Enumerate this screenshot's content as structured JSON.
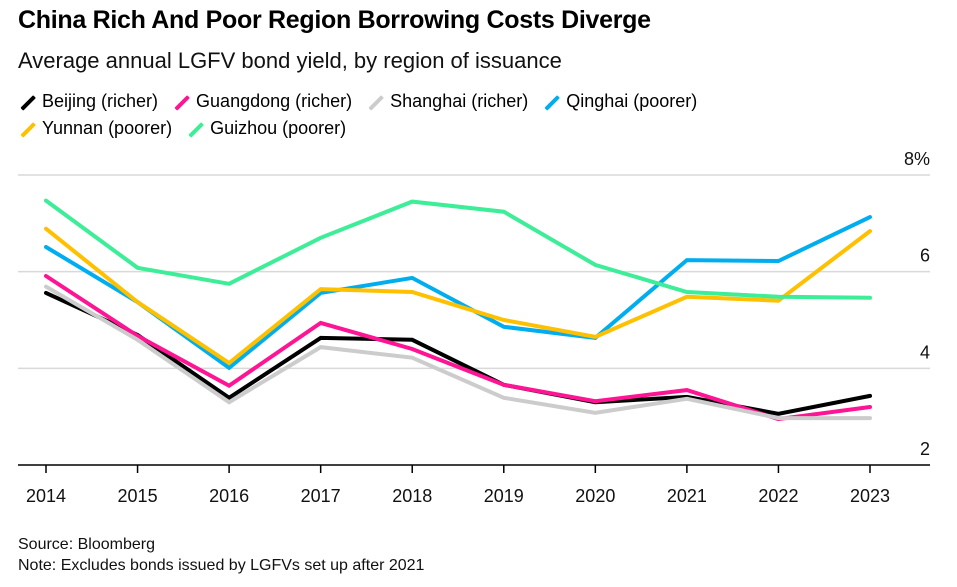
{
  "chart_data": {
    "type": "line",
    "title": "China Rich And Poor Region Borrowing Costs Diverge",
    "subtitle": "Average annual LGFV bond yield, by region of issuance",
    "xlabel": "",
    "ylabel": "",
    "x": [
      "2014",
      "2015",
      "2016",
      "2017",
      "2018",
      "2019",
      "2020",
      "2021",
      "2022",
      "2023"
    ],
    "ylim": [
      2,
      8
    ],
    "yticks": [
      2,
      4,
      6,
      8
    ],
    "ytick_labels": [
      "2",
      "4",
      "6",
      "8%"
    ],
    "grid": true,
    "legend_position": "top-left",
    "series": [
      {
        "name": "Beijing (richer)",
        "color": "#000000",
        "values": [
          5.56,
          4.69,
          3.39,
          4.63,
          4.59,
          3.66,
          3.3,
          3.41,
          3.06,
          3.43
        ]
      },
      {
        "name": "Guangdong (richer)",
        "color": "#ff1493",
        "values": [
          5.91,
          4.67,
          3.64,
          4.94,
          4.4,
          3.66,
          3.32,
          3.55,
          2.95,
          3.2
        ]
      },
      {
        "name": "Shanghai (richer)",
        "color": "#cccccc",
        "values": [
          5.69,
          4.59,
          3.3,
          4.44,
          4.22,
          3.39,
          3.08,
          3.37,
          2.97,
          2.97
        ]
      },
      {
        "name": "Qinghai (poorer)",
        "color": "#00aeef",
        "values": [
          6.51,
          5.37,
          4.01,
          5.56,
          5.87,
          4.86,
          4.63,
          6.24,
          6.22,
          7.13
        ]
      },
      {
        "name": "Yunnan (poorer)",
        "color": "#ffc000",
        "values": [
          6.89,
          5.37,
          4.11,
          5.64,
          5.58,
          5.0,
          4.65,
          5.48,
          5.4,
          6.84
        ]
      },
      {
        "name": "Guizhou (poorer)",
        "color": "#3ded97",
        "values": [
          7.47,
          6.08,
          5.75,
          6.7,
          7.45,
          7.24,
          6.14,
          5.58,
          5.48,
          5.46
        ]
      }
    ],
    "legend_rows": [
      [
        0,
        1,
        2,
        3
      ],
      [
        4,
        5
      ]
    ]
  },
  "footer": {
    "source": "Source: Bloomberg",
    "note": "Note: Excludes bonds issued by LGFVs set up after 2021"
  }
}
